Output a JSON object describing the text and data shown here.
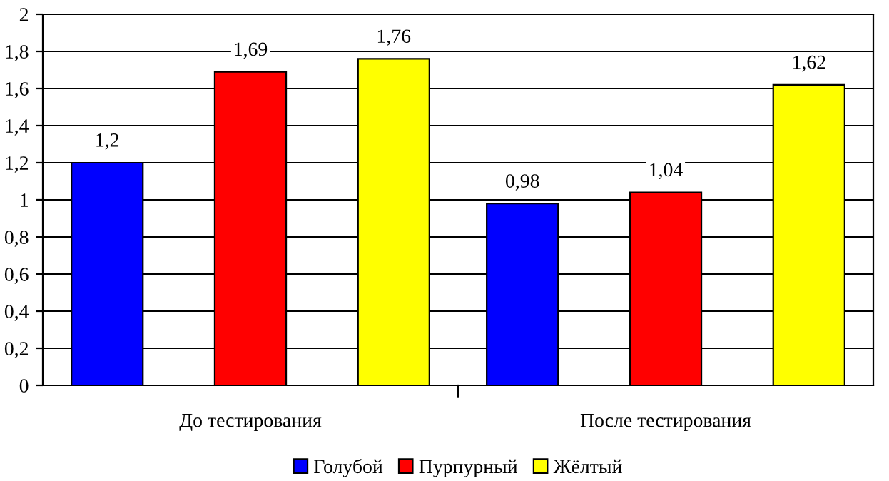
{
  "chart_data": {
    "type": "bar",
    "categories": [
      "До тестирования",
      "После тестирования"
    ],
    "series": [
      {
        "name": "Голубой",
        "color": "#0000ff",
        "values": [
          1.2,
          0.98
        ],
        "value_labels": [
          "1,2",
          "0,98"
        ]
      },
      {
        "name": "Пурпурный",
        "color": "#ff0000",
        "values": [
          1.69,
          1.04
        ],
        "value_labels": [
          "1,69",
          "1,04"
        ]
      },
      {
        "name": "Жёлтый",
        "color": "#ffff00",
        "values": [
          1.76,
          1.62
        ],
        "value_labels": [
          "1,76",
          "1,62"
        ]
      }
    ],
    "ylim": [
      0,
      2
    ],
    "yticks": [
      0,
      {
        "value": 0.2,
        "label": "0,2"
      },
      {
        "value": 0.4,
        "label": "0,4"
      },
      {
        "value": 0.6,
        "label": "0,6"
      },
      {
        "value": 0.8,
        "label": "0,8"
      },
      1,
      {
        "value": 1.2,
        "label": "1,2"
      },
      {
        "value": 1.4,
        "label": "1,4"
      },
      {
        "value": 1.6,
        "label": "1,6"
      },
      {
        "value": 1.8,
        "label": "1,8"
      },
      2
    ],
    "grid": "y",
    "legend": "bottom"
  }
}
